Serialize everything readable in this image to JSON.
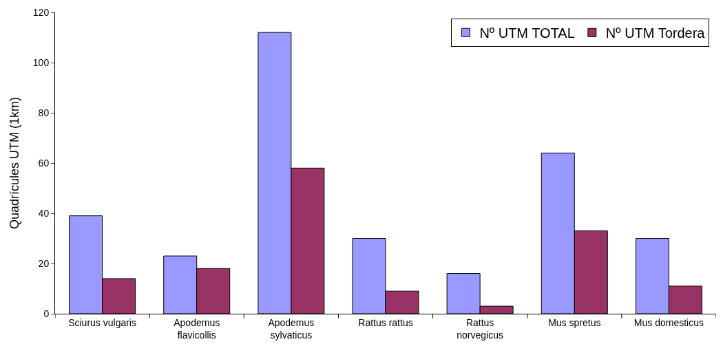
{
  "chart_data": {
    "type": "bar",
    "ylabel": "Quadrícules UTM (1km)",
    "categories": [
      "Sciurus vulgaris",
      "Apodemus\nflavicollis",
      "Apodemus\nsylvaticus",
      "Rattus rattus",
      "Rattus\nnorvegicus",
      "Mus spretus",
      "Mus domesticus"
    ],
    "series": [
      {
        "name": "Nº UTM TOTAL",
        "color": "#9999ff",
        "values": [
          39,
          23,
          112,
          30,
          16,
          64,
          30
        ]
      },
      {
        "name": "Nº UTM Tordera",
        "color": "#993366",
        "values": [
          14,
          18,
          58,
          9,
          3,
          33,
          11
        ]
      }
    ],
    "ylim": [
      0,
      120
    ],
    "yticks": [
      0,
      20,
      40,
      60,
      80,
      100,
      120
    ],
    "grid": false,
    "legend": "top right"
  }
}
